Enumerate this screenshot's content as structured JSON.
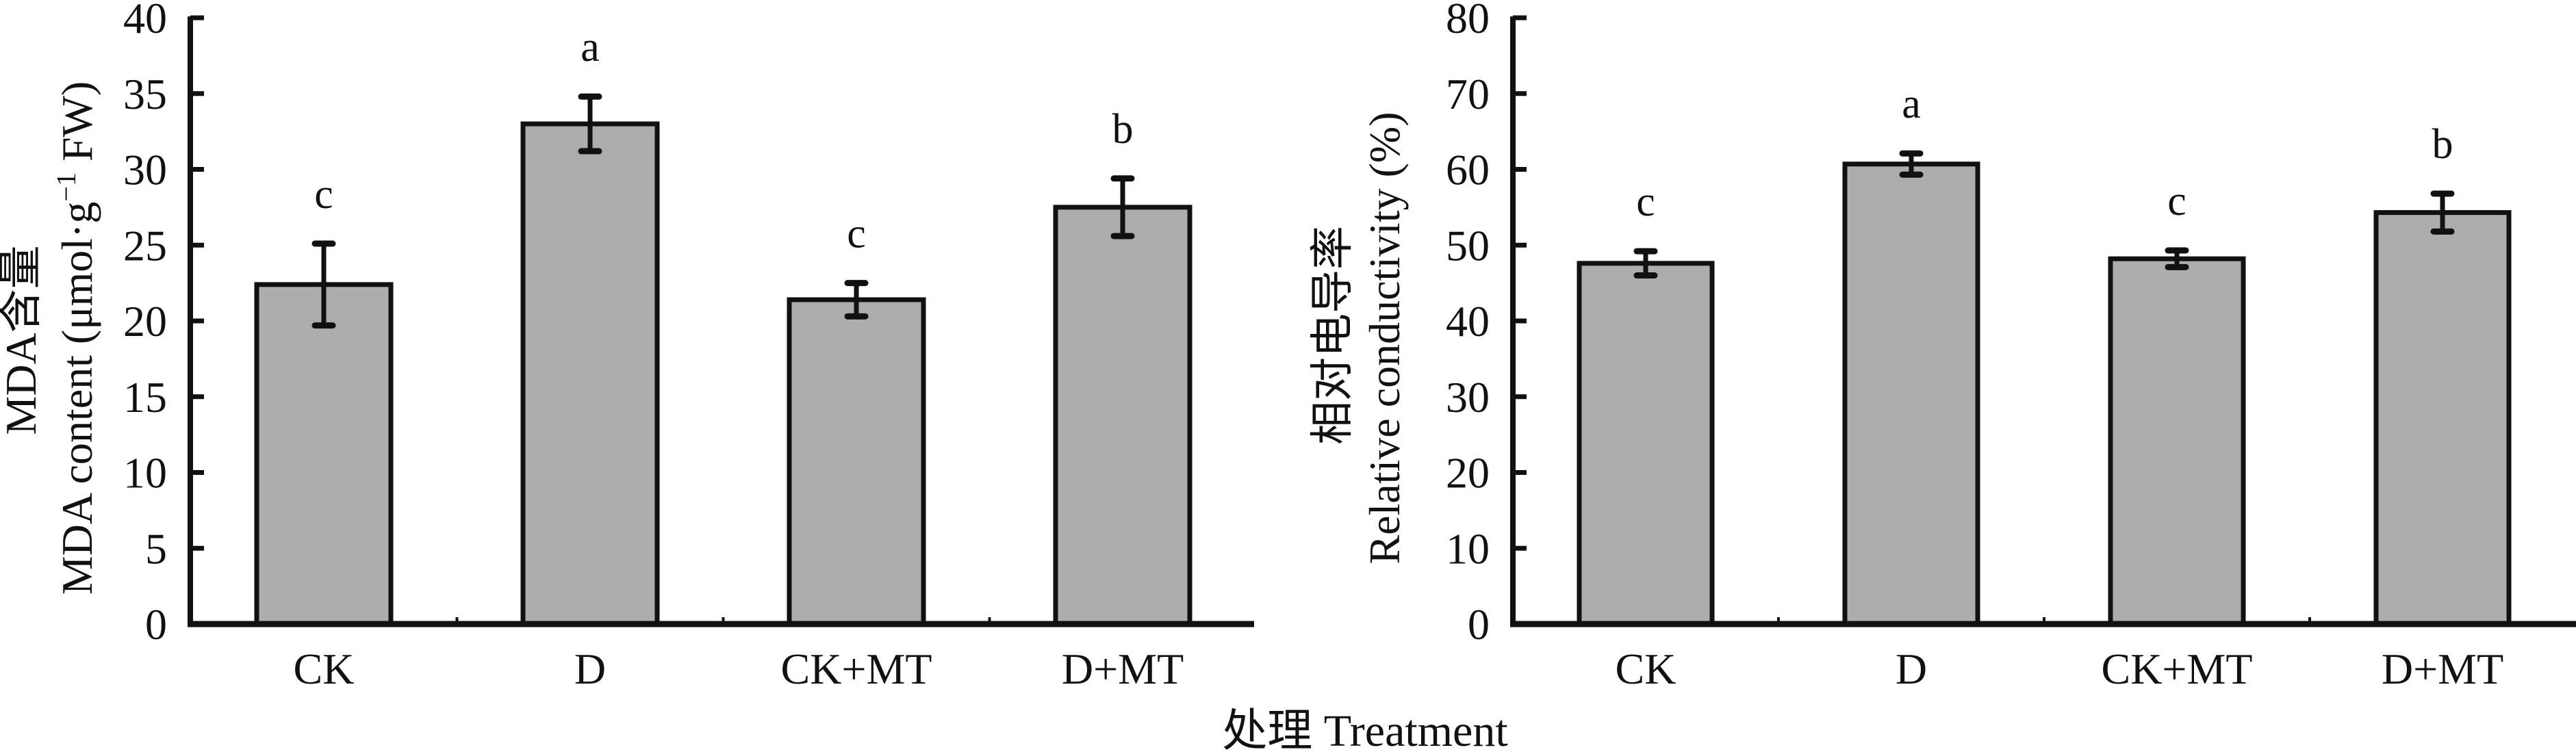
{
  "figure": {
    "shared_xlabel": "处理 Treatment"
  },
  "colors": {
    "bar_fill": "#adadad",
    "bar_stroke": "#111111",
    "axis": "#111111"
  },
  "chart_data": [
    {
      "type": "bar",
      "title": "",
      "categories": [
        "CK",
        "D",
        "CK+MT",
        "D+MT"
      ],
      "values": [
        22.4,
        33.0,
        21.4,
        27.5
      ],
      "errors": [
        2.7,
        1.8,
        1.1,
        1.9
      ],
      "significance": [
        "c",
        "a",
        "c",
        "b"
      ],
      "ylabel_cn": "MDA含量",
      "ylabel": "MDA content (μmol·g⁻¹ FW)",
      "ylabel_parts": {
        "pre": "MDA content (μmol·g",
        "sup": "−1",
        "post": " FW)"
      },
      "xlabel": "处理 Treatment",
      "ylim": [
        0,
        40
      ],
      "yticks": [
        0,
        5,
        10,
        15,
        20,
        25,
        30,
        35,
        40
      ],
      "ytick_labels": [
        "0",
        "5",
        "10",
        "15",
        "20",
        "25",
        "30",
        "35",
        "40"
      ],
      "grid": false,
      "legend": "none"
    },
    {
      "type": "bar",
      "title": "",
      "categories": [
        "CK",
        "D",
        "CK+MT",
        "D+MT"
      ],
      "values": [
        47.6,
        60.7,
        48.2,
        54.3
      ],
      "errors": [
        1.6,
        1.4,
        1.1,
        2.5
      ],
      "significance": [
        "c",
        "a",
        "c",
        "b"
      ],
      "ylabel_cn": "相对电导率",
      "ylabel": "Relative conductivity (%)",
      "xlabel": "处理 Treatment",
      "ylim": [
        0,
        80
      ],
      "yticks": [
        0,
        10,
        20,
        30,
        40,
        50,
        60,
        70,
        80
      ],
      "ytick_labels": [
        "0",
        "10",
        "20",
        "30",
        "40",
        "50",
        "60",
        "70",
        "80"
      ],
      "grid": false,
      "legend": "none"
    }
  ]
}
